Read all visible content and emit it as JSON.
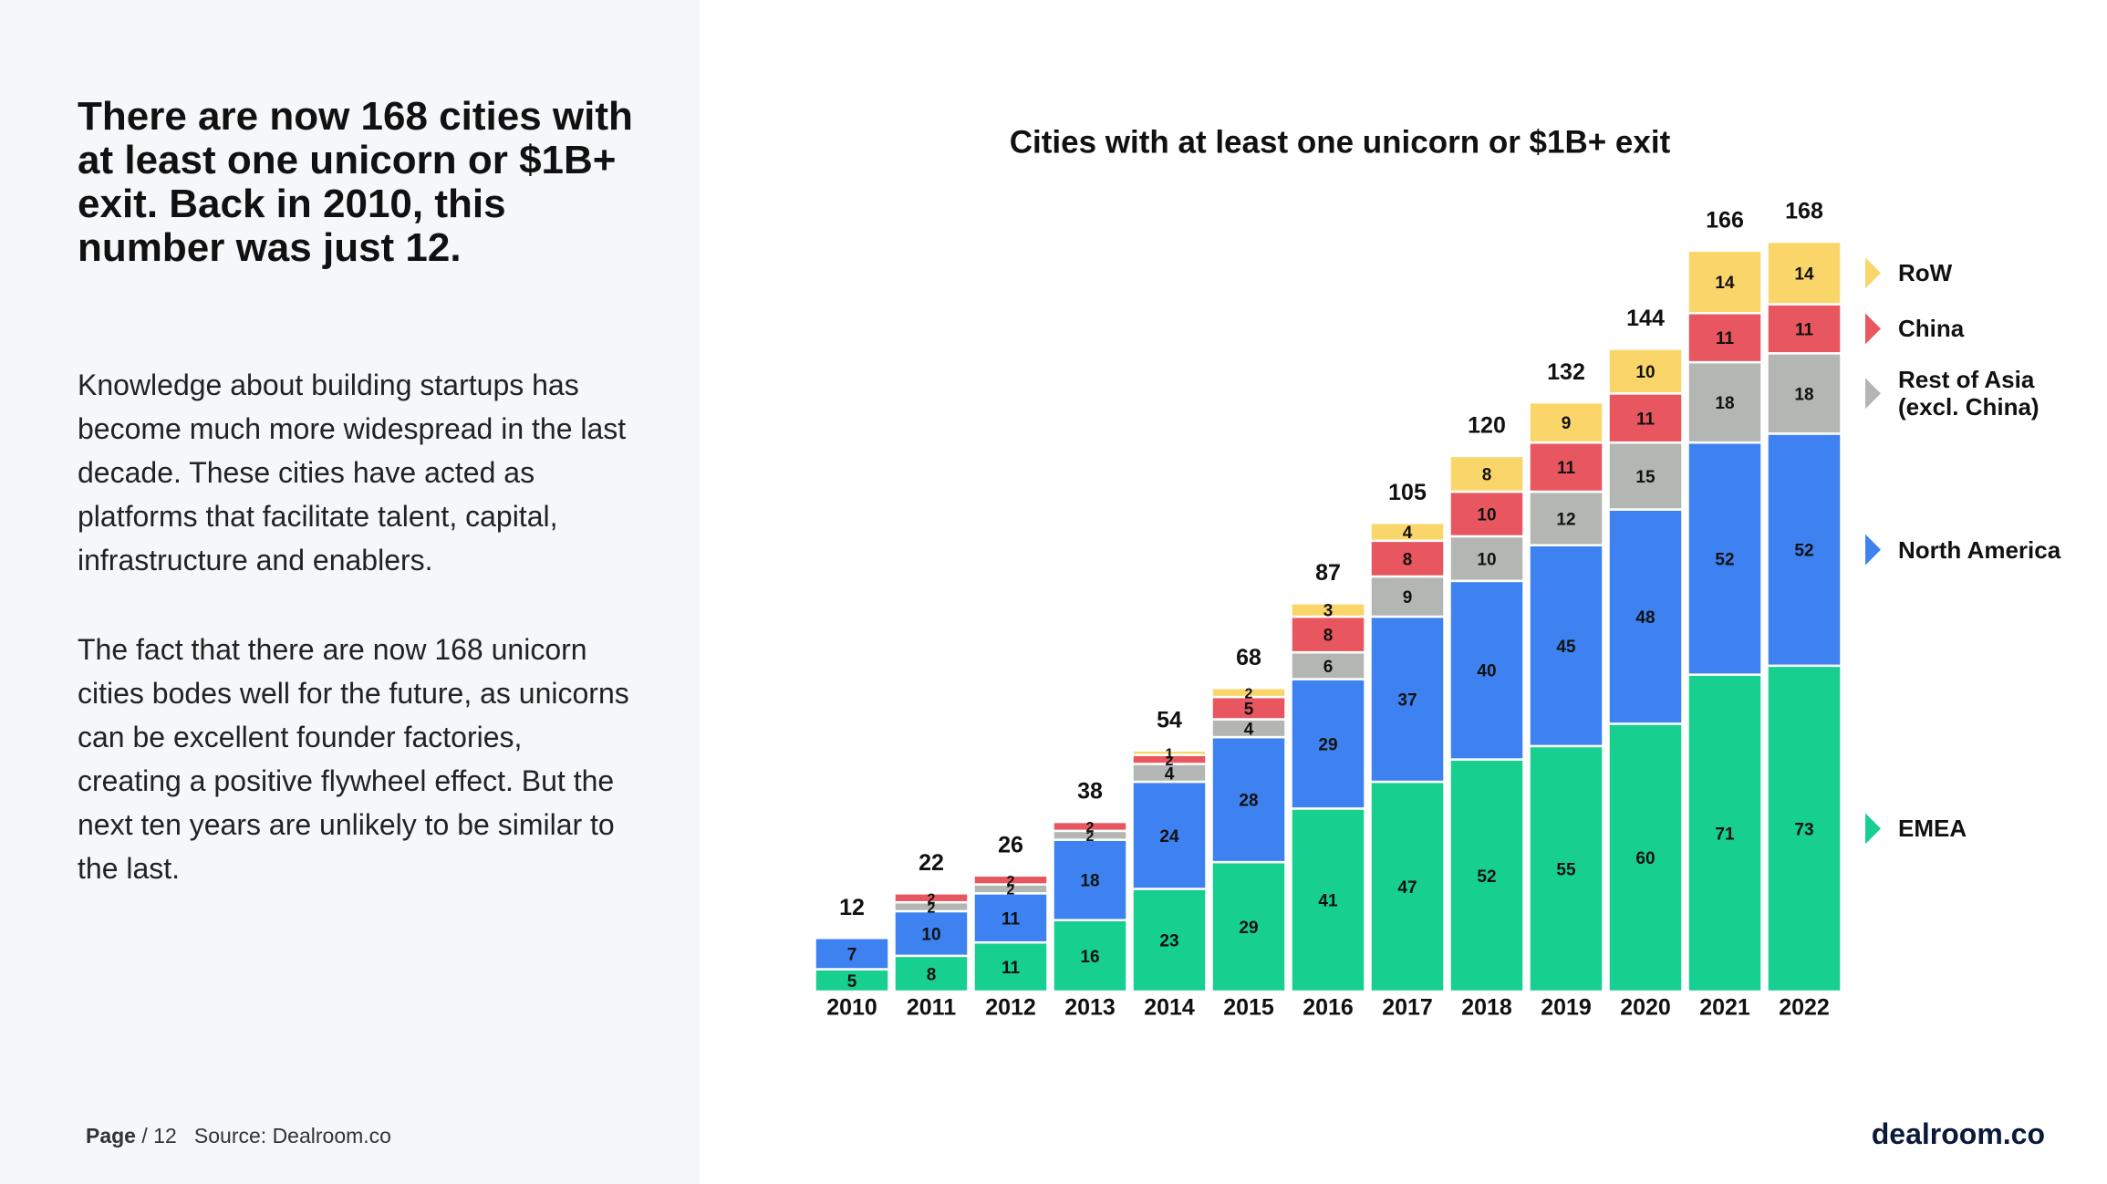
{
  "page": {
    "heading": "There are now 168 cities with at least one unicorn or $1B+ exit. Back in 2010, this number was just 12.",
    "paragraphs": [
      "Knowledge about building startups has become much more widespread in the last decade. These cities have acted as platforms that facilitate talent, capital, infrastructure and enablers.",
      "The fact that there are now 168 unicorn cities bodes well for the future, as unicorns can be excellent founder factories, creating a positive flywheel effect. But the next ten years are unlikely to be similar to the last."
    ],
    "footer": {
      "page_label": "Page",
      "page_number": "/ 12",
      "source": "Source: Dealroom.co",
      "logo": "dealroom.co"
    }
  },
  "chart_data": {
    "type": "stacked-bar",
    "title": "Cities with at least one unicorn or $1B+ exit",
    "categories": [
      "2010",
      "2011",
      "2012",
      "2013",
      "2014",
      "2015",
      "2016",
      "2017",
      "2018",
      "2019",
      "2020",
      "2021",
      "2022"
    ],
    "series": [
      {
        "name": "EMEA",
        "color": "#17cf8f",
        "values": [
          5,
          8,
          11,
          16,
          23,
          29,
          41,
          47,
          52,
          55,
          60,
          71,
          73
        ]
      },
      {
        "name": "North America",
        "color": "#3d82f0",
        "values": [
          7,
          10,
          11,
          18,
          24,
          28,
          29,
          37,
          40,
          45,
          48,
          52,
          52
        ]
      },
      {
        "name": "Rest of Asia (excl. China)",
        "color": "#b4b6b4",
        "values": [
          null,
          2,
          2,
          2,
          4,
          4,
          6,
          9,
          10,
          12,
          15,
          18,
          18
        ]
      },
      {
        "name": "China",
        "color": "#e8575f",
        "values": [
          null,
          2,
          2,
          2,
          2,
          5,
          8,
          8,
          10,
          11,
          11,
          11,
          11
        ]
      },
      {
        "name": "RoW",
        "color": "#fad66a",
        "values": [
          null,
          null,
          null,
          null,
          1,
          2,
          3,
          4,
          8,
          9,
          10,
          14,
          14
        ]
      }
    ],
    "totals": [
      12,
      22,
      26,
      38,
      54,
      68,
      87,
      105,
      120,
      132,
      144,
      166,
      168
    ],
    "legend": "right"
  }
}
